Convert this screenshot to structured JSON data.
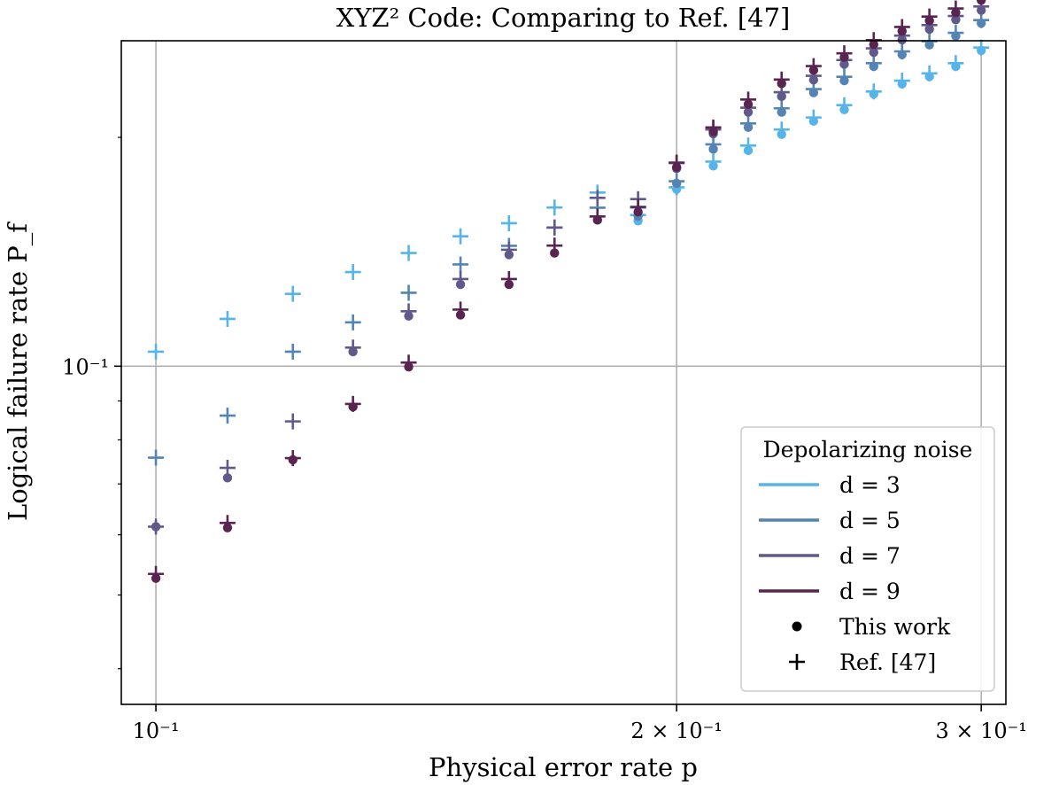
{
  "chart_data": {
    "type": "scatter",
    "title": "XYZ² Code: Comparing to Ref. [47]",
    "xlabel": "Physical error rate p",
    "ylabel": "Logical failure rate P_f",
    "xscale": "log",
    "yscale": "log",
    "xlim": [
      0.0955,
      0.31
    ],
    "ylim": [
      0.0359,
      0.268
    ],
    "x_ticks": [
      {
        "value": 0.1,
        "label": "10⁻¹"
      },
      {
        "value": 0.2,
        "label": "2 × 10⁻¹"
      },
      {
        "value": 0.3,
        "label": "3 × 10⁻¹"
      }
    ],
    "y_ticks": [
      {
        "value": 0.1,
        "label": "10⁻¹"
      }
    ],
    "grid": true,
    "x": [
      0.1,
      0.11,
      0.12,
      0.13,
      0.14,
      0.15,
      0.16,
      0.17,
      0.18,
      0.19,
      0.2,
      0.21,
      0.22,
      0.23,
      0.24,
      0.25,
      0.26,
      0.27,
      0.28,
      0.29,
      0.3
    ],
    "series": [
      {
        "name": "d = 3",
        "color": "#56b4e9",
        "this_work": [
          null,
          null,
          null,
          null,
          null,
          null,
          null,
          null,
          null,
          0.1553,
          0.1709,
          0.1834,
          0.1922,
          0.2018,
          0.2101,
          0.2175,
          0.2281,
          0.2352,
          0.2404,
          0.248,
          0.2602
        ],
        "ref47": [
          0.1045,
          0.1154,
          0.1245,
          0.133,
          0.1409,
          0.1482,
          0.1542,
          0.1617,
          0.1692,
          0.1581,
          0.1719,
          0.1858,
          0.1951,
          0.2048,
          0.2124,
          0.2205,
          0.2298,
          0.2375,
          0.2428,
          0.2504,
          0.2625
        ]
      },
      {
        "name": "d = 5",
        "color": "#5484b4",
        "this_work": [
          null,
          null,
          null,
          null,
          null,
          null,
          null,
          null,
          null,
          0.1575,
          0.174,
          0.193,
          0.2062,
          0.2159,
          0.229,
          0.2375,
          0.248,
          0.257,
          0.2647,
          0.2719,
          0.2826
        ],
        "ref47": [
          0.0758,
          0.0861,
          0.1045,
          0.1142,
          0.1249,
          0.1361,
          0.144,
          0.1522,
          0.1616,
          0.1617,
          0.1751,
          0.1958,
          0.2086,
          0.2184,
          0.2315,
          0.2403,
          0.2504,
          0.2595,
          0.2676,
          0.2745,
          0.2853
        ]
      },
      {
        "name": "d = 7",
        "color": "#605a8c",
        "this_work": [
          0.0615,
          0.0713,
          null,
          0.1045,
          0.1164,
          0.1281,
          0.1402,
          null,
          null,
          null,
          0.182,
          0.2022,
          0.2159,
          0.2264,
          0.238,
          0.2496,
          0.2588,
          0.2688,
          0.2776,
          0.2856,
          0.2939
        ],
        "ref47": [
          0.0615,
          0.0735,
          0.0846,
          0.1058,
          0.1181,
          0.1302,
          0.1423,
          0.1522,
          0.1665,
          0.1659,
          0.185,
          0.2048,
          0.2188,
          0.2293,
          0.241,
          0.2528,
          0.2619,
          0.2722,
          0.281,
          0.2889,
          0.2973
        ]
      },
      {
        "name": "d = 9",
        "color": "#5a2451",
        "this_work": [
          0.0526,
          0.0613,
          0.0753,
          0.0884,
          0.0998,
          0.1168,
          0.1281,
          0.1409,
          0.1557,
          0.1596,
          0.1827,
          0.2035,
          0.2211,
          0.2354,
          0.2451,
          0.255,
          0.265,
          0.2758,
          0.2848,
          0.2918,
          0.303
        ],
        "ref47": [
          0.0533,
          0.0622,
          0.0757,
          0.0892,
          0.1011,
          0.1187,
          0.1302,
          0.1441,
          0.1574,
          0.162,
          0.1853,
          0.2061,
          0.2243,
          0.2383,
          0.2482,
          0.258,
          0.2685,
          0.2794,
          0.2884,
          0.2955,
          0.3064
        ]
      }
    ],
    "legend": {
      "title": "Depolarizing noise",
      "position": "lower-right",
      "entries": [
        "d = 3",
        "d = 5",
        "d = 7",
        "d = 9",
        "This work",
        "Ref. [47]"
      ]
    }
  }
}
